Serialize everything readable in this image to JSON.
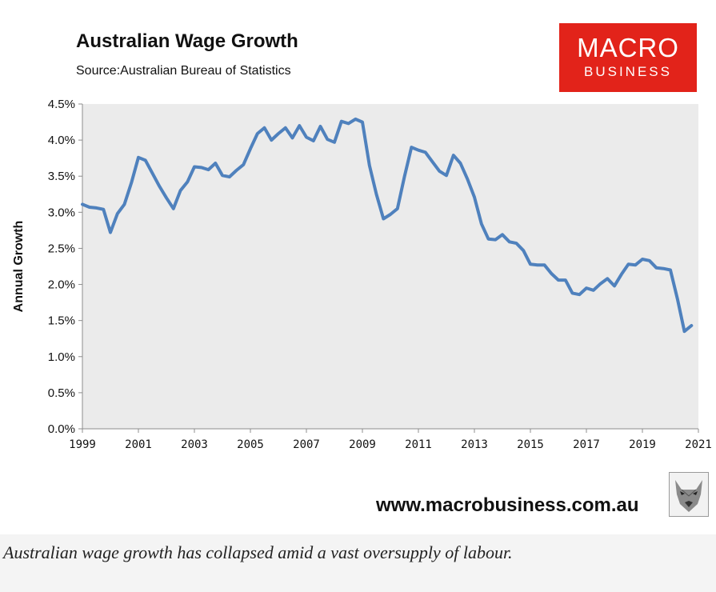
{
  "logo": {
    "line1": "MACRO",
    "line2": "BUSINESS"
  },
  "footer": {
    "url": "www.macrobusiness.com.au",
    "wolf_icon": "wolf-icon"
  },
  "caption": "Australian wage growth has collapsed amid a vast oversupply of labour.",
  "colors": {
    "line": "#4f81bd",
    "plot_background": "#ebebeb",
    "logo_background": "#e2231a"
  },
  "chart_data": {
    "type": "line",
    "title": "Australian Wage Growth",
    "subtitle": "Source:Australian Bureau of Statistics",
    "ylabel": "Annual Growth",
    "xlabel": "",
    "xlim": [
      1999,
      2021
    ],
    "ylim": [
      0,
      0.045
    ],
    "x_ticks": [
      1999,
      2001,
      2003,
      2005,
      2007,
      2009,
      2011,
      2013,
      2015,
      2017,
      2019,
      2021
    ],
    "y_ticks": [
      {
        "value": 0.045,
        "label": "4.5%"
      },
      {
        "value": 0.04,
        "label": "4.0%"
      },
      {
        "value": 0.035,
        "label": "3.5%"
      },
      {
        "value": 0.03,
        "label": "3.0%"
      },
      {
        "value": 0.025,
        "label": "2.5%"
      },
      {
        "value": 0.02,
        "label": "2.0%"
      },
      {
        "value": 0.015,
        "label": "1.5%"
      },
      {
        "value": 0.01,
        "label": "1.0%"
      },
      {
        "value": 0.005,
        "label": "0.5%"
      },
      {
        "value": 0.0,
        "label": "0.0%"
      }
    ],
    "grid": false,
    "legend": "none",
    "series": [
      {
        "name": "",
        "x": [
          1999.0,
          1999.25,
          1999.5,
          1999.75,
          2000.0,
          2000.25,
          2000.5,
          2000.75,
          2001.0,
          2001.25,
          2001.5,
          2001.75,
          2002.0,
          2002.25,
          2002.5,
          2002.75,
          2003.0,
          2003.25,
          2003.5,
          2003.75,
          2004.0,
          2004.25,
          2004.5,
          2004.75,
          2005.0,
          2005.25,
          2005.5,
          2005.75,
          2006.0,
          2006.25,
          2006.5,
          2006.75,
          2007.0,
          2007.25,
          2007.5,
          2007.75,
          2008.0,
          2008.25,
          2008.5,
          2008.75,
          2009.0,
          2009.25,
          2009.5,
          2009.75,
          2010.0,
          2010.25,
          2010.5,
          2010.75,
          2011.0,
          2011.25,
          2011.5,
          2011.75,
          2012.0,
          2012.25,
          2012.5,
          2012.75,
          2013.0,
          2013.25,
          2013.5,
          2013.75,
          2014.0,
          2014.25,
          2014.5,
          2014.75,
          2015.0,
          2015.25,
          2015.5,
          2015.75,
          2016.0,
          2016.25,
          2016.5,
          2016.75,
          2017.0,
          2017.25,
          2017.5,
          2017.75,
          2018.0,
          2018.25,
          2018.5,
          2018.75,
          2019.0,
          2019.25,
          2019.5,
          2019.75,
          2020.0,
          2020.25,
          2020.5,
          2020.75,
          2021.0
        ],
        "values": [
          0.0311,
          0.0307,
          0.0306,
          0.0304,
          0.0272,
          0.0298,
          0.0311,
          0.0341,
          0.0376,
          0.0372,
          0.0354,
          0.0336,
          0.032,
          0.0305,
          0.033,
          0.0342,
          0.0363,
          0.0362,
          0.0359,
          0.0368,
          0.0351,
          0.0349,
          0.0358,
          0.0366,
          0.0388,
          0.0409,
          0.0417,
          0.04,
          0.0409,
          0.0417,
          0.0403,
          0.042,
          0.0404,
          0.0399,
          0.0419,
          0.0401,
          0.0397,
          0.0426,
          0.0423,
          0.0429,
          0.0425,
          0.0365,
          0.0325,
          0.0291,
          0.0297,
          0.0305,
          0.0349,
          0.039,
          0.0386,
          0.0383,
          0.037,
          0.0357,
          0.0351,
          0.0379,
          0.0368,
          0.0346,
          0.0321,
          0.0284,
          0.0263,
          0.0262,
          0.0269,
          0.0259,
          0.0257,
          0.0247,
          0.0228,
          0.0227,
          0.0227,
          0.0215,
          0.0206,
          0.0206,
          0.0188,
          0.0186,
          0.0195,
          0.0192,
          0.0201,
          0.0208,
          0.0198,
          0.0214,
          0.0228,
          0.0227,
          0.0235,
          0.0233,
          0.0223,
          0.0222,
          0.022,
          0.018,
          0.0135,
          0.0143,
          null
        ]
      }
    ]
  }
}
